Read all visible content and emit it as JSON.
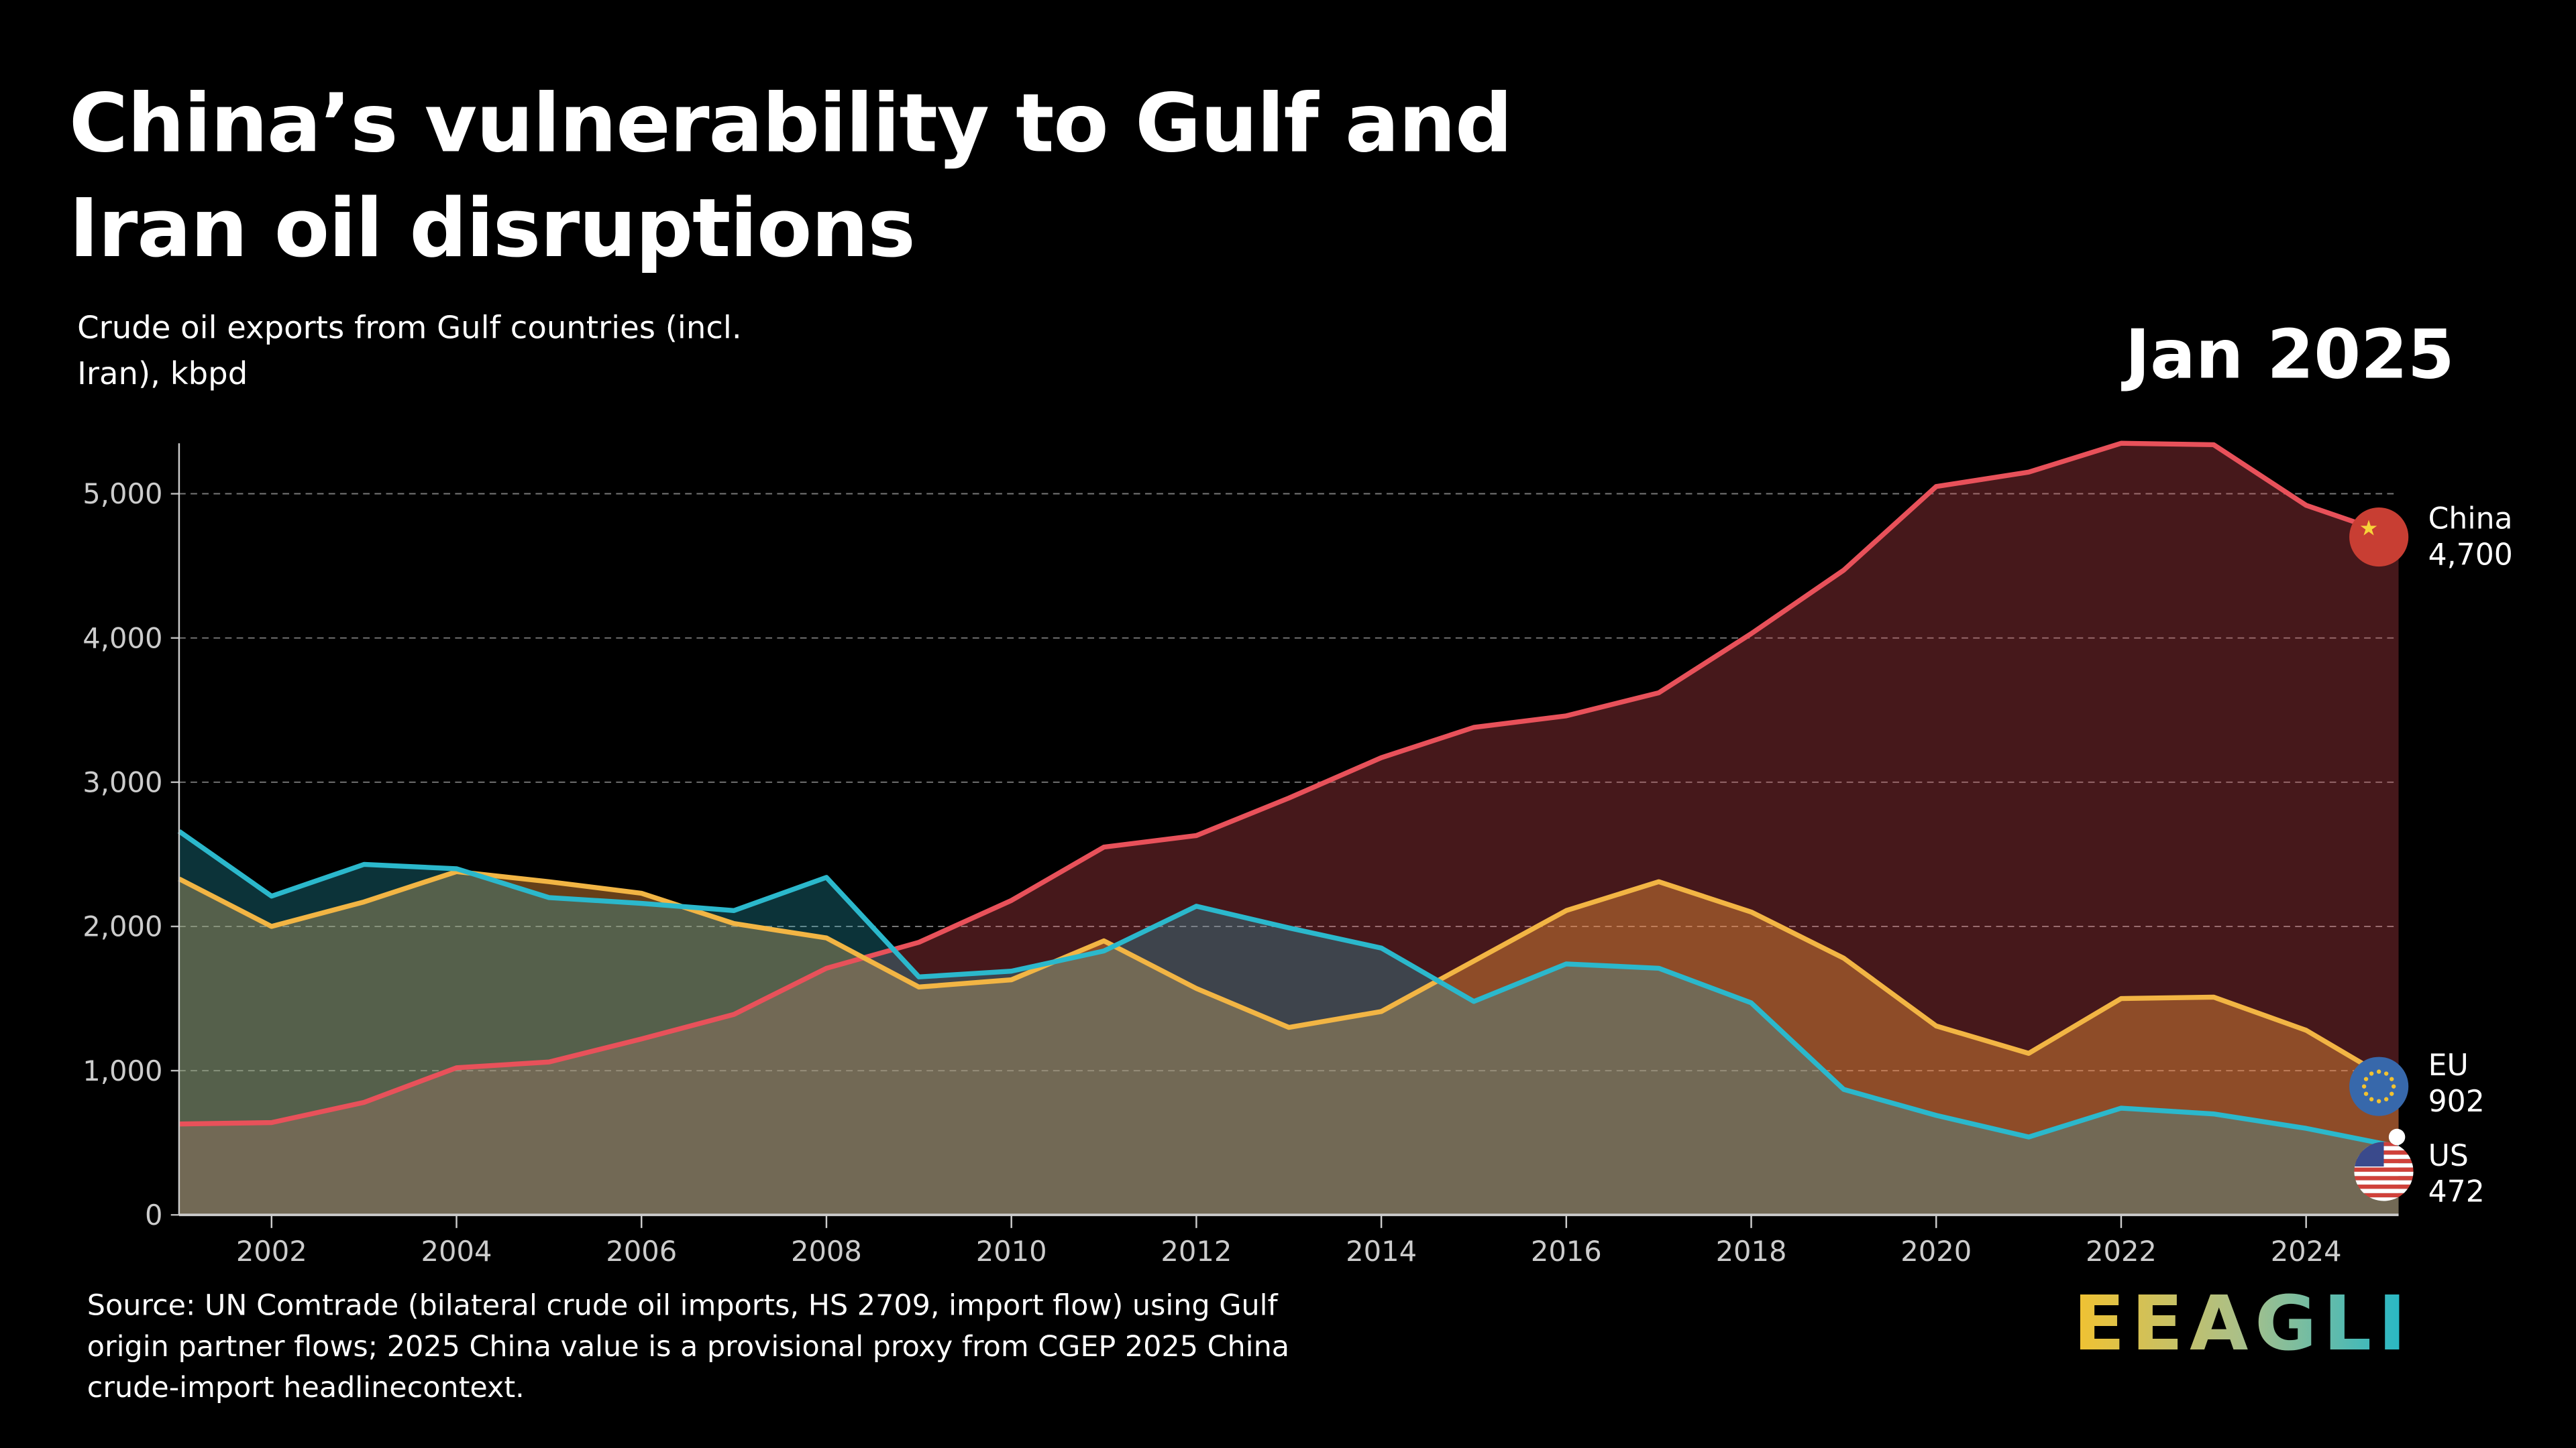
{
  "header": {
    "title": "China’s vulnerability to Gulf and Iran oil disruptions",
    "subtitle": "Crude oil exports from Gulf countries (incl. Iran), kbpd",
    "date": "Jan 2025"
  },
  "source": "Source: UN Comtrade (bilateral crude oil imports, HS 2709, import flow) using Gulf origin partner flows; 2025 China value is a provisional proxy from CGEP 2025 China crude-import headlinecontext.",
  "logo": "EEAGLI",
  "chart_data": {
    "type": "area",
    "title": "",
    "xlabel": "",
    "ylabel": "",
    "x": [
      2001,
      2002,
      2003,
      2004,
      2005,
      2006,
      2007,
      2008,
      2009,
      2010,
      2011,
      2012,
      2013,
      2014,
      2015,
      2016,
      2017,
      2018,
      2019,
      2020,
      2021,
      2022,
      2023,
      2024,
      2025
    ],
    "xlim": [
      2001,
      2025
    ],
    "ylim": [
      0,
      5350
    ],
    "xticks": [
      "2002",
      "2004",
      "2006",
      "2008",
      "2010",
      "2012",
      "2014",
      "2016",
      "2018",
      "2020",
      "2022",
      "2024"
    ],
    "yticks": [
      "0",
      "1,000",
      "2,000",
      "3,000",
      "4,000",
      "5,000"
    ],
    "grid": true,
    "series": [
      {
        "name": "US",
        "end_label": "472",
        "color": "#2bb8cc",
        "flag": "us-flag",
        "values": [
          2660,
          2210,
          2430,
          2400,
          2200,
          2160,
          2110,
          2340,
          1650,
          1690,
          1830,
          2140,
          1990,
          1850,
          1480,
          1740,
          1710,
          1470,
          870,
          690,
          540,
          740,
          700,
          600,
          472
        ]
      },
      {
        "name": "EU",
        "end_label": "902",
        "color": "#f2b544",
        "flag": "eu-flag",
        "values": [
          2330,
          2000,
          2170,
          2380,
          2310,
          2230,
          2020,
          1920,
          1580,
          1630,
          1900,
          1570,
          1300,
          1410,
          1760,
          2110,
          2310,
          2100,
          1780,
          1310,
          1120,
          1500,
          1510,
          1280,
          902
        ]
      },
      {
        "name": "China",
        "end_label": "4,700",
        "color": "#e8515a",
        "flag": "china-flag",
        "values": [
          630,
          640,
          780,
          1020,
          1060,
          1220,
          1390,
          1710,
          1890,
          2180,
          2550,
          2630,
          2890,
          3170,
          3380,
          3460,
          3620,
          4030,
          4470,
          5050,
          5150,
          5350,
          5340,
          4920,
          4700
        ]
      }
    ]
  }
}
